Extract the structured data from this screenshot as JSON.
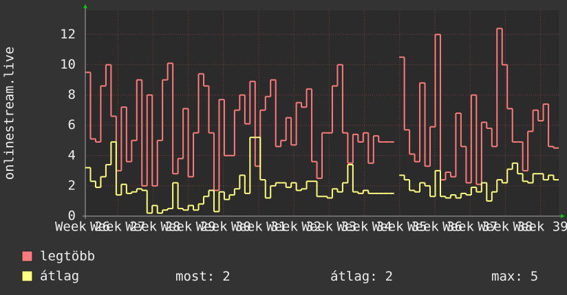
{
  "chart_data": {
    "type": "line",
    "ylabel": "onlinestream.live",
    "xlabels": [
      "Week 26",
      "Week 27",
      "Week 28",
      "Week 29",
      "Week 30",
      "Week 31",
      "Week 32",
      "Week 33",
      "Week 34",
      "Week 35",
      "Week 36",
      "Week 37",
      "Week 38",
      "Week 39"
    ],
    "ylim": [
      0,
      13.6
    ],
    "yticks": [
      0,
      2,
      4,
      6,
      8,
      10,
      12
    ],
    "grid": true,
    "series": [
      {
        "name": "legtöbb",
        "color": "#ff7b7b",
        "values": [
          9.5,
          5.1,
          4.9,
          8.6,
          10,
          6.6,
          3,
          7.2,
          3.6,
          5,
          9,
          2,
          8,
          2,
          5,
          9,
          10.1,
          2.8,
          3.8,
          7.1,
          2.6,
          5.5,
          9.4,
          8.6,
          5.5,
          1.7,
          7.7,
          4,
          4,
          7,
          8,
          6.1,
          8.9,
          3.3,
          7,
          7.9,
          9,
          4.6,
          5,
          6.5,
          4.7,
          7.5,
          7.2,
          8.4,
          3.6,
          2.5,
          5.5,
          5.5,
          8.6,
          10,
          5.5,
          3.5,
          5.4,
          4.9,
          5.5,
          3.5,
          5.3,
          4.9,
          4.9,
          4.9,
          null,
          10.5,
          5.7,
          4.1,
          3.6,
          8.8,
          3.3,
          5.9,
          12,
          2.4,
          2.9,
          2.6,
          6.8,
          4.6,
          2.2,
          8,
          2.1,
          6.2,
          5.8,
          4.6,
          12.4,
          10,
          7.1,
          4.9,
          4.9,
          3,
          5.6,
          7,
          6.3,
          7.4,
          4.6,
          4.5
        ]
      },
      {
        "name": "átlag",
        "color": "#ffff80",
        "values": [
          3.2,
          2.3,
          1.9,
          2.6,
          3.4,
          4.9,
          1.4,
          2.1,
          1.5,
          1.6,
          1.8,
          1.7,
          0.2,
          0.7,
          0.2,
          0.4,
          0.5,
          2.2,
          0.5,
          0.4,
          0.7,
          0.4,
          0.8,
          1.3,
          1.7,
          0.3,
          1.6,
          1.1,
          1.4,
          1.8,
          2.7,
          1.5,
          5.2,
          5.2,
          2.4,
          1.2,
          2,
          2.2,
          2.2,
          1.9,
          2.2,
          1.7,
          1.8,
          2.3,
          2.3,
          1.3,
          1.3,
          1.2,
          1.8,
          1.6,
          2.2,
          3.4,
          1.6,
          1.5,
          1.7,
          1.5,
          1.5,
          1.5,
          1.5,
          1.5,
          null,
          2.7,
          2.4,
          1.7,
          1.6,
          2.2,
          2,
          1.3,
          3,
          1.3,
          1.2,
          1.4,
          1.2,
          1.5,
          1.4,
          1.9,
          1.6,
          2.2,
          1,
          1.6,
          2.4,
          2.2,
          3.1,
          3.5,
          2.8,
          2.3,
          2.2,
          2.8,
          2.8,
          2.4,
          2.7,
          2.4
        ]
      }
    ],
    "stats": [
      {
        "label": "most:",
        "value": 2
      },
      {
        "label": "átlag:",
        "value": 2
      },
      {
        "label": "max:",
        "value": 5
      }
    ]
  }
}
